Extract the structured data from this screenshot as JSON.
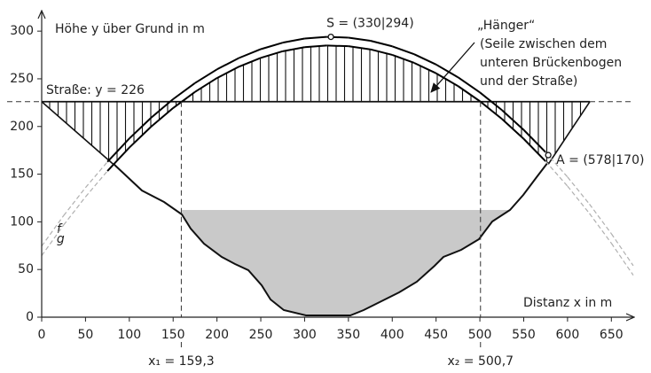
{
  "chart_data": {
    "type": "line",
    "y_label": "Höhe y über Grund in m",
    "x_label": "Distanz x in m",
    "xlim": [
      0,
      675
    ],
    "ylim": [
      0,
      315
    ],
    "xticks": [
      0,
      50,
      100,
      150,
      200,
      250,
      300,
      350,
      400,
      450,
      500,
      550,
      600,
      650
    ],
    "yticks": [
      0,
      50,
      100,
      150,
      200,
      250,
      300
    ],
    "x": [
      0,
      25,
      50,
      75,
      100,
      125,
      150,
      175,
      200,
      225,
      250,
      275,
      300,
      325,
      350,
      375,
      400,
      425,
      450,
      475,
      500,
      525,
      550,
      575,
      600,
      625,
      650,
      675
    ],
    "series": [
      {
        "name": "f",
        "color": "#000000",
        "values": [
          74.5,
          106.5,
          135.9,
          162.9,
          187.4,
          209.3,
          228.7,
          245.6,
          259.9,
          271.8,
          281.1,
          287.9,
          292.2,
          294.0,
          293.2,
          289.9,
          284.1,
          275.8,
          265.0,
          251.6,
          235.7,
          217.3,
          196.4,
          173.0,
          147.0,
          118.6,
          87.6,
          54.0
        ]
      },
      {
        "name": "g",
        "color": "#000000",
        "values": [
          64.5,
          96.6,
          126.2,
          153.3,
          177.9,
          199.9,
          219.4,
          236.3,
          250.8,
          262.7,
          272.0,
          278.9,
          283.2,
          284.9,
          284.2,
          280.9,
          275.1,
          266.7,
          255.8,
          242.4,
          226.5,
          208.0,
          187.0,
          163.5,
          137.4,
          108.8,
          77.6,
          44.0
        ]
      }
    ],
    "road": {
      "y": 226,
      "label": "Straße: y = 226"
    },
    "points": [
      {
        "x": 330,
        "y": 294,
        "label": "S = (330|294)"
      },
      {
        "x": 578,
        "y": 170,
        "label": "A = (578|170)"
      }
    ],
    "markers": [
      {
        "x": 159.3,
        "label": "x₁ = 159,3"
      },
      {
        "x": 500.7,
        "label": "x₂ = 500,7"
      }
    ],
    "hanger_label": [
      "„Hänger“",
      "(Seile zwischen dem",
      "unteren Brückenbogen",
      "und der Straße)"
    ]
  }
}
